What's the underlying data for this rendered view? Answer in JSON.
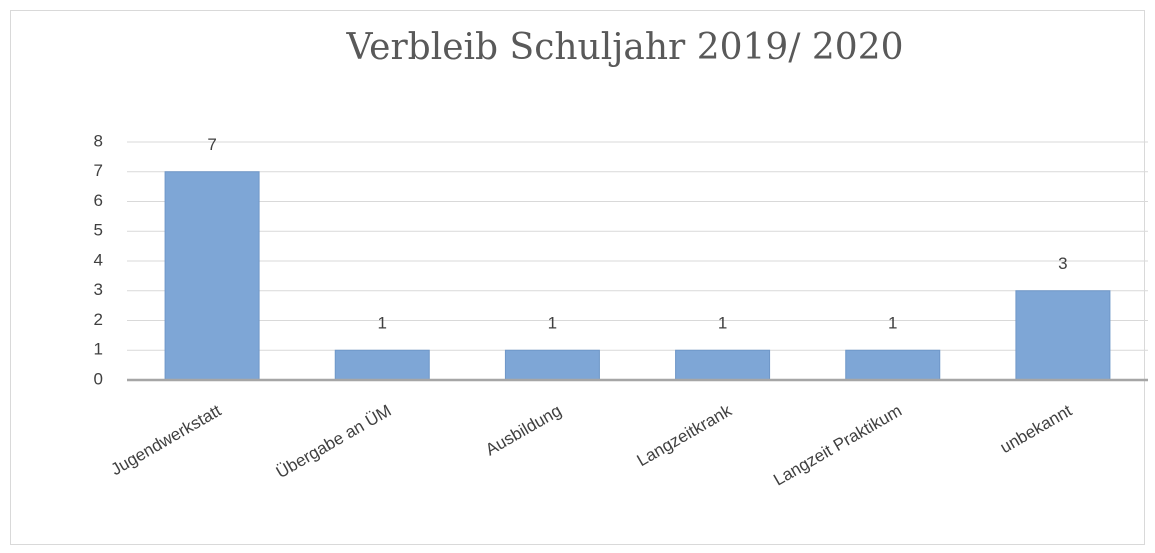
{
  "chart_data": {
    "type": "bar",
    "title": "Verbleib Schuljahr 2019/ 2020",
    "categories": [
      "Jugendwerkstatt",
      "Übergabe an ÜM",
      "Ausbildung",
      "Langzeitkrank",
      "Langzeit Praktikum",
      "unbekannt"
    ],
    "values": [
      7,
      1,
      1,
      1,
      1,
      3
    ],
    "color": "#7ea6d6",
    "ylim": [
      0,
      8
    ],
    "yticks": [
      0,
      1,
      2,
      3,
      4,
      5,
      6,
      7,
      8
    ],
    "grid": true
  }
}
